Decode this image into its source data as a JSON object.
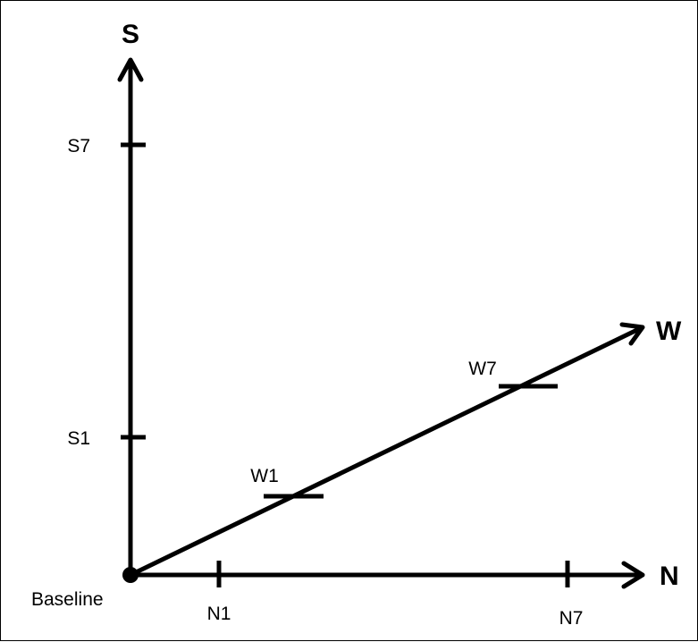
{
  "diagram": {
    "axes": {
      "s": {
        "label": "S",
        "ticks": [
          "S1",
          "S7"
        ]
      },
      "w": {
        "label": "W",
        "ticks": [
          "W1",
          "W7"
        ]
      },
      "n": {
        "label": "N",
        "ticks": [
          "N1",
          "N7"
        ]
      }
    },
    "origin_label": "Baseline",
    "colors": {
      "line": "#000000",
      "background": "#ffffff"
    }
  }
}
